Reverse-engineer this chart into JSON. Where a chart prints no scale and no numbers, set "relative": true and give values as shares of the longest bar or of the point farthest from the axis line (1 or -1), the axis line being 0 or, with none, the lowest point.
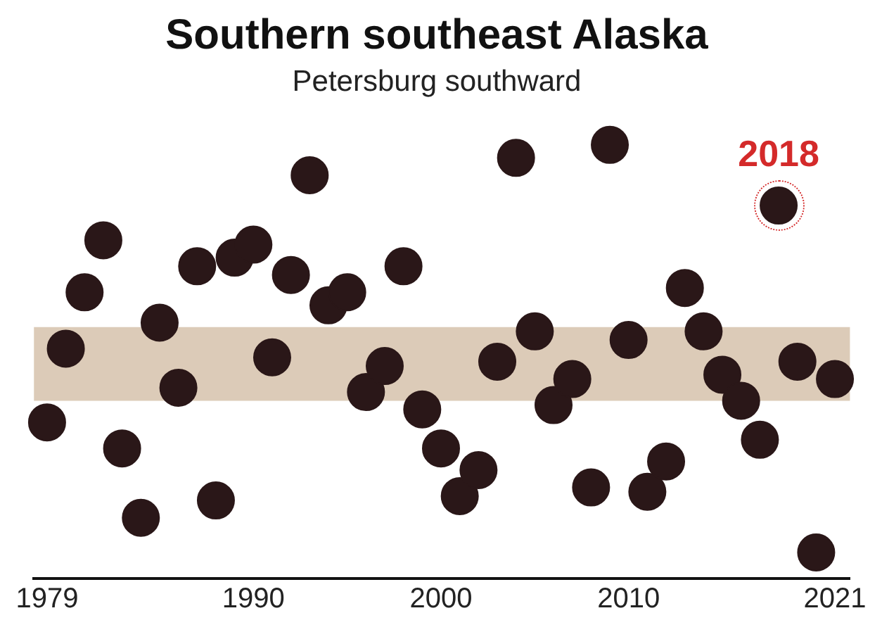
{
  "chart_data": {
    "type": "scatter",
    "title": "Southern southeast Alaska",
    "subtitle": "Petersburg southward",
    "relative": true,
    "x": [
      1979,
      1980,
      1981,
      1982,
      1983,
      1984,
      1985,
      1986,
      1987,
      1988,
      1989,
      1990,
      1991,
      1992,
      1993,
      1994,
      1995,
      1996,
      1997,
      1998,
      1999,
      2000,
      2001,
      2002,
      2003,
      2004,
      2005,
      2006,
      2007,
      2008,
      2009,
      2010,
      2011,
      2012,
      2013,
      2014,
      2015,
      2016,
      2017,
      2018,
      2019,
      2020,
      2021
    ],
    "series": [
      {
        "color": "#2a1718",
        "values": [
          0.36,
          0.53,
          0.66,
          0.78,
          0.3,
          0.14,
          0.59,
          0.44,
          0.72,
          0.18,
          0.74,
          0.77,
          0.51,
          0.7,
          0.93,
          0.63,
          0.66,
          0.43,
          0.49,
          0.72,
          0.39,
          0.3,
          0.19,
          0.25,
          0.5,
          0.97,
          0.57,
          0.4,
          0.46,
          0.21,
          1.0,
          0.55,
          0.2,
          0.27,
          0.67,
          0.57,
          0.47,
          0.41,
          0.32,
          0.86,
          0.5,
          0.06,
          0.46
        ]
      }
    ],
    "xlim": [
      1978.3,
      2021.8
    ],
    "xticks": [
      1979,
      1990,
      2000,
      2010,
      2021
    ],
    "bands": [
      {
        "axis": "y",
        "from": 0.41,
        "to": 0.58,
        "color": "#dccbb8"
      }
    ],
    "annotations": [
      {
        "text": "2018",
        "x": 2018,
        "y": 0.86
      }
    ],
    "marker": "circle",
    "grid": false,
    "legend": false
  }
}
